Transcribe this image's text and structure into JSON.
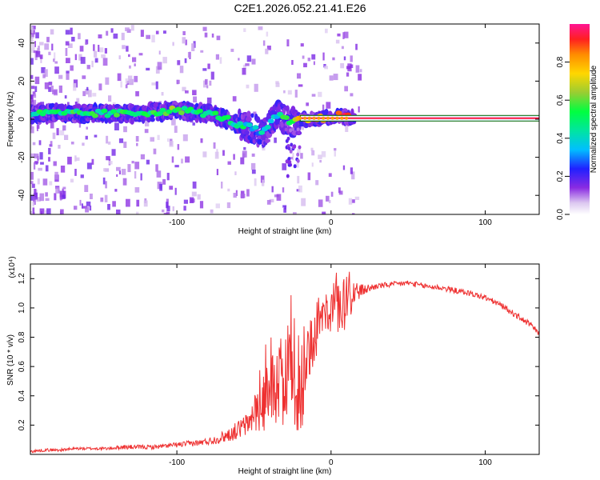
{
  "figure_title": "C2E1.2026.052.21.41.E26",
  "colors": {
    "snr_line": "#ee3030",
    "axis": "#000000",
    "background": "#ffffff",
    "trace_center": "#ff1744",
    "trace_edge": "#006400"
  },
  "chart_data": [
    {
      "type": "heatmap",
      "title": "",
      "xlabel": "Height of straight line (km)",
      "ylabel": "Frequency (Hz)",
      "xlim": [
        -195,
        135
      ],
      "ylim": [
        -50,
        50
      ],
      "xticks": [
        -100,
        0,
        100
      ],
      "yticks": [
        -40,
        -20,
        0,
        20,
        40
      ],
      "xtick_labels": [
        "-100",
        "0",
        "100"
      ],
      "ytick_labels": [
        "-40",
        "-20",
        "0",
        "20",
        "40"
      ],
      "description_trace": {
        "x": [
          -195,
          -170,
          -150,
          -130,
          -110,
          -100,
          -90,
          -80,
          -70,
          -60,
          -50,
          -45,
          -40,
          -35,
          -30,
          -25,
          -20,
          -10,
          0,
          5,
          10,
          50,
          100,
          135
        ],
        "y": [
          3,
          3,
          3,
          3,
          4,
          5,
          4,
          3,
          1,
          -3,
          -5,
          -8,
          -3,
          2,
          0,
          -2,
          0,
          0,
          1,
          2,
          1,
          0.5,
          0.5,
          0.5
        ],
        "peak_amplitude": [
          0.45,
          0.5,
          0.5,
          0.5,
          0.55,
          0.6,
          0.5,
          0.45,
          0.5,
          0.45,
          0.35,
          0.3,
          0.4,
          0.4,
          0.5,
          0.6,
          0.9,
          0.95,
          0.95,
          1.0,
          1.0,
          1.0,
          1.0,
          1.0
        ]
      },
      "colorbar": {
        "label": "Normalized spectral amplitude",
        "range": [
          0,
          1
        ],
        "ticks": [
          0.0,
          0.2,
          0.4,
          0.6,
          0.8
        ],
        "tick_labels": [
          "0.0",
          "0.2",
          "0.4",
          "0.6",
          "0.8"
        ]
      }
    },
    {
      "type": "line",
      "title": "",
      "xlabel": "Height of straight line (km)",
      "ylabel": "SNR (10 * v/v)",
      "scale_note": "(x10⁴)",
      "xlim": [
        -195,
        135
      ],
      "ylim": [
        0,
        1.3
      ],
      "xticks": [
        -100,
        0,
        100
      ],
      "yticks": [
        0.2,
        0.4,
        0.6,
        0.8,
        1.0,
        1.2
      ],
      "xtick_labels": [
        "-100",
        "0",
        "100"
      ],
      "ytick_labels": [
        "0.2",
        "0.4",
        "0.6",
        "0.8",
        "1.0",
        "1.2"
      ],
      "series": [
        {
          "name": "SNR",
          "x": [
            -195,
            -185,
            -175,
            -165,
            -155,
            -145,
            -135,
            -125,
            -115,
            -105,
            -95,
            -85,
            -75,
            -65,
            -55,
            -50,
            -45,
            -40,
            -35,
            -30,
            -25,
            -20,
            -15,
            -10,
            -5,
            0,
            5,
            10,
            15,
            20,
            30,
            40,
            50,
            60,
            70,
            80,
            90,
            100,
            110,
            120,
            130,
            135
          ],
          "values": [
            0.02,
            0.03,
            0.03,
            0.04,
            0.04,
            0.04,
            0.05,
            0.05,
            0.05,
            0.06,
            0.07,
            0.08,
            0.1,
            0.14,
            0.2,
            0.25,
            0.32,
            0.42,
            0.5,
            0.55,
            0.5,
            0.3,
            0.7,
            0.8,
            0.95,
            0.98,
            1.0,
            1.05,
            1.1,
            1.12,
            1.15,
            1.16,
            1.17,
            1.15,
            1.14,
            1.12,
            1.1,
            1.07,
            1.02,
            0.95,
            0.88,
            0.82
          ],
          "noise": [
            0.01,
            0.01,
            0.01,
            0.01,
            0.01,
            0.01,
            0.015,
            0.015,
            0.015,
            0.015,
            0.02,
            0.02,
            0.03,
            0.05,
            0.08,
            0.12,
            0.18,
            0.22,
            0.3,
            0.35,
            0.35,
            0.3,
            0.2,
            0.15,
            0.12,
            0.15,
            0.18,
            0.2,
            0.1,
            0.04,
            0.02,
            0.02,
            0.02,
            0.02,
            0.02,
            0.02,
            0.02,
            0.02,
            0.02,
            0.02,
            0.02,
            0.02
          ]
        }
      ]
    }
  ]
}
